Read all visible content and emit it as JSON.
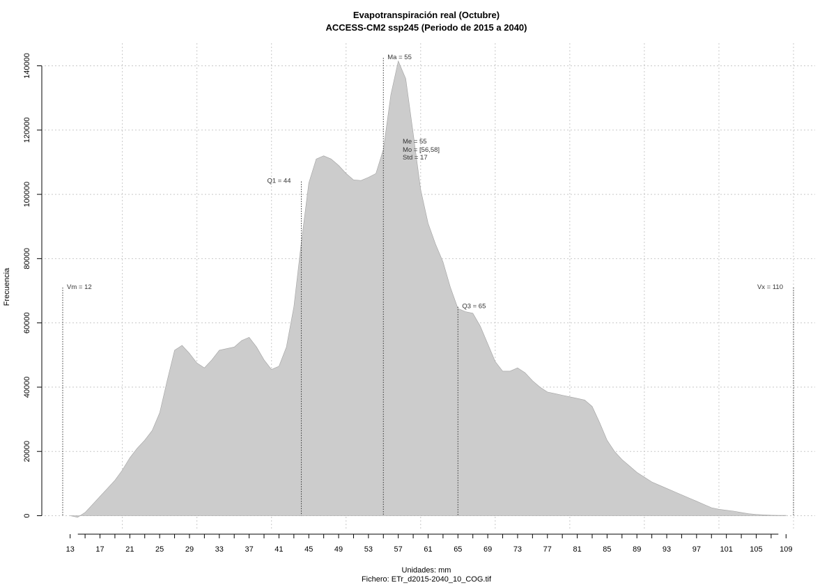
{
  "chart_data": {
    "type": "area",
    "title": "Evapotranspiración real (Octubre)",
    "subtitle": "ACCESS-CM2 ssp245 (Periodo de 2015 a 2040)",
    "xlabel": "Unidades: mm",
    "ylabel": "Frecuencia",
    "footer": "Fichero: ETr_d2015-2040_10_COG.tif",
    "xlim": [
      12,
      110
    ],
    "ylim": [
      0,
      140000
    ],
    "x_ticks": [
      13,
      17,
      21,
      25,
      29,
      33,
      37,
      41,
      45,
      49,
      53,
      57,
      61,
      65,
      69,
      73,
      77,
      81,
      85,
      89,
      93,
      97,
      101,
      105,
      109
    ],
    "y_ticks": [
      0,
      20000,
      40000,
      60000,
      80000,
      100000,
      120000,
      140000
    ],
    "y_tick_labels": [
      "0",
      "20000",
      "40000",
      "60000",
      "80000",
      "100000",
      "120000",
      "140000"
    ],
    "grid": true,
    "grid_x": [
      20,
      30,
      40,
      50,
      60,
      70,
      80,
      90,
      100,
      110
    ],
    "fill_color": "#cccccc",
    "x": [
      13,
      14,
      15,
      16,
      17,
      18,
      19,
      20,
      21,
      22,
      23,
      24,
      25,
      26,
      27,
      28,
      29,
      30,
      31,
      32,
      33,
      34,
      35,
      36,
      37,
      38,
      39,
      40,
      41,
      42,
      43,
      44,
      45,
      46,
      47,
      48,
      49,
      50,
      51,
      52,
      53,
      54,
      55,
      56,
      57,
      58,
      59,
      60,
      61,
      62,
      63,
      64,
      65,
      66,
      67,
      68,
      69,
      70,
      71,
      72,
      73,
      74,
      75,
      76,
      77,
      78,
      79,
      80,
      81,
      82,
      83,
      84,
      85,
      86,
      87,
      88,
      89,
      90,
      91,
      92,
      93,
      94,
      95,
      96,
      97,
      98,
      99,
      100,
      101,
      102,
      103,
      104,
      105,
      106,
      107,
      108,
      109
    ],
    "y": [
      0,
      -500,
      1000,
      3500,
      6000,
      8500,
      11000,
      14200,
      18000,
      21000,
      23500,
      26500,
      32000,
      42000,
      51500,
      53000,
      50500,
      47500,
      46000,
      48500,
      51500,
      52000,
      52500,
      54500,
      55500,
      52500,
      48500,
      45500,
      46500,
      52500,
      65000,
      85000,
      103500,
      111000,
      112000,
      111000,
      109000,
      106500,
      104500,
      104300,
      105300,
      106500,
      114000,
      131000,
      141500,
      136000,
      119000,
      101500,
      91000,
      84500,
      79000,
      71000,
      64500,
      63500,
      63000,
      59000,
      53500,
      48000,
      45000,
      45000,
      46000,
      44500,
      42000,
      40000,
      38500,
      38000,
      37500,
      37000,
      36500,
      36000,
      34000,
      29000,
      23500,
      20000,
      17500,
      15500,
      13500,
      12000,
      10500,
      9500,
      8500,
      7500,
      6500,
      5500,
      4500,
      3500,
      2500,
      2000,
      1700,
      1400,
      1000,
      600,
      400,
      250,
      150,
      100,
      80
    ],
    "annotations": [
      {
        "label": "Vm = 12",
        "x": 12,
        "y_top": 71000,
        "side": "right"
      },
      {
        "label": "Q1 = 44",
        "x": 44,
        "y_top": 104000,
        "side": "left"
      },
      {
        "label": "Ma = 55",
        "x": 55,
        "y_top": 142500,
        "side": "right"
      },
      {
        "label": "Q3 = 65",
        "x": 65,
        "y_top": 65000,
        "side": "right"
      },
      {
        "label": "Vx = 110",
        "x": 110,
        "y_top": 71000,
        "side": "left"
      }
    ],
    "stats": [
      "Me = 55",
      "Mo = [56,58]",
      "Std = 17"
    ]
  }
}
